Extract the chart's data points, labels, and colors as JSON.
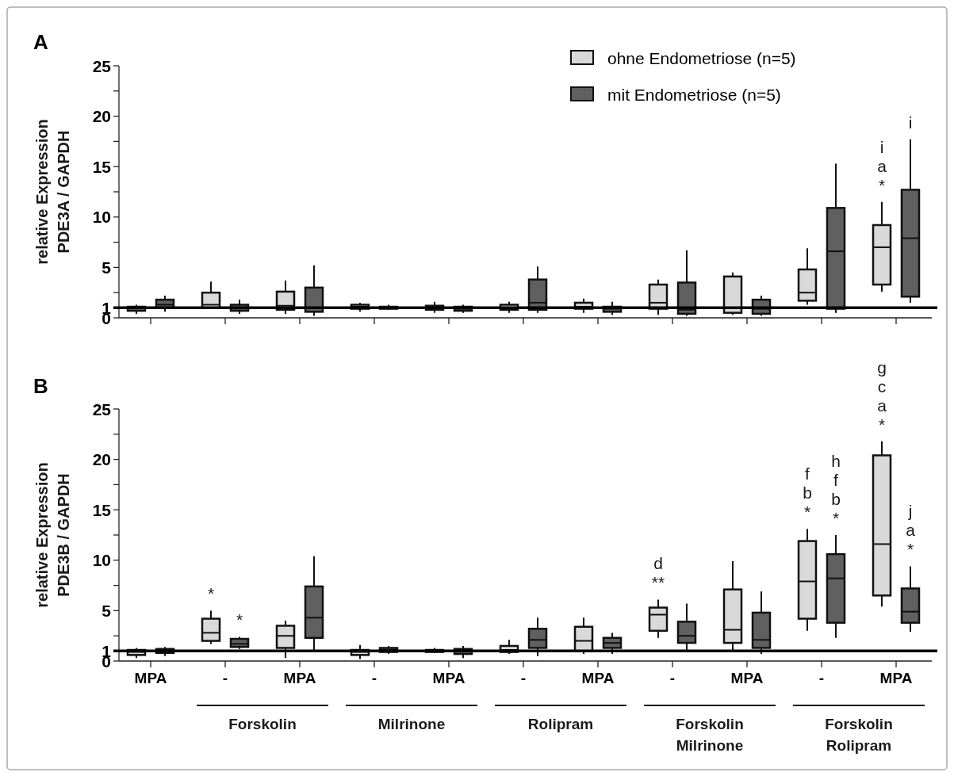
{
  "chart_data": [
    {
      "type": "box",
      "title": "A",
      "ylabel": "relative Expression\nPDE3A / GAPDH",
      "categories": [
        null,
        null,
        null,
        null,
        null,
        null,
        null,
        null,
        null,
        null,
        null
      ],
      "ylim": [
        0,
        25
      ],
      "yticks": [
        0,
        1,
        {
          "value": 2.5,
          "label": null
        },
        5,
        {
          "value": 7.5,
          "label": null
        },
        10,
        {
          "value": 12.5,
          "label": null
        },
        15,
        {
          "value": 17.5,
          "label": null
        },
        20,
        {
          "value": 22.5,
          "label": null
        },
        25
      ],
      "tick_labels": "y",
      "legend": "top right",
      "ref_lines": [
        {
          "axis": "y",
          "value": 1,
          "color": "#000000"
        }
      ],
      "series": [
        {
          "name": "ohne Endometriose (n=5)",
          "color": "#d9d9d9",
          "boxes": [
            {
              "low": 0.4,
              "q1": 0.7,
              "median": 0.9,
              "q3": 1.1,
              "high": 1.3
            },
            {
              "low": 0.9,
              "q1": 1.0,
              "median": 1.3,
              "q3": 2.5,
              "high": 3.6
            },
            {
              "low": 0.4,
              "q1": 0.8,
              "median": 1.2,
              "q3": 2.6,
              "high": 3.7
            },
            {
              "low": 0.6,
              "q1": 0.9,
              "median": 1.1,
              "q3": 1.3,
              "high": 1.5
            },
            {
              "low": 0.5,
              "q1": 0.8,
              "median": 1.0,
              "q3": 1.2,
              "high": 1.6
            },
            {
              "low": 0.5,
              "q1": 0.8,
              "median": 1.0,
              "q3": 1.3,
              "high": 1.6
            },
            {
              "low": 0.5,
              "q1": 0.9,
              "median": 1.1,
              "q3": 1.5,
              "high": 1.9
            },
            {
              "low": 0.3,
              "q1": 0.9,
              "median": 1.5,
              "q3": 3.3,
              "high": 3.8
            },
            {
              "low": 0.3,
              "q1": 0.5,
              "median": 1.0,
              "q3": 4.1,
              "high": 4.5
            },
            {
              "low": 1.3,
              "q1": 1.7,
              "median": 2.5,
              "q3": 4.8,
              "high": 6.9
            },
            {
              "low": 2.6,
              "q1": 3.3,
              "median": 7.0,
              "q3": 9.2,
              "high": 11.5
            }
          ],
          "value_labels": [
            null,
            null,
            null,
            null,
            null,
            null,
            null,
            null,
            null,
            null,
            "i\na\n*"
          ]
        },
        {
          "name": "mit Endometriose (n=5)",
          "color": "#606060",
          "boxes": [
            {
              "low": 0.6,
              "q1": 1.0,
              "median": 1.3,
              "q3": 1.8,
              "high": 2.2
            },
            {
              "low": 0.4,
              "q1": 0.7,
              "median": 1.0,
              "q3": 1.3,
              "high": 1.8
            },
            {
              "low": 0.2,
              "q1": 0.6,
              "median": 1.0,
              "q3": 3.0,
              "high": 5.2
            },
            {
              "low": 0.8,
              "q1": 0.9,
              "median": 1.0,
              "q3": 1.1,
              "high": 1.3
            },
            {
              "low": 0.5,
              "q1": 0.7,
              "median": 0.9,
              "q3": 1.1,
              "high": 1.3
            },
            {
              "low": 0.5,
              "q1": 0.8,
              "median": 1.5,
              "q3": 3.8,
              "high": 5.1
            },
            {
              "low": 0.3,
              "q1": 0.6,
              "median": 0.9,
              "q3": 1.1,
              "high": 1.6
            },
            {
              "low": 0.2,
              "q1": 0.4,
              "median": 0.8,
              "q3": 3.5,
              "high": 6.7
            },
            {
              "low": 0.2,
              "q1": 0.4,
              "median": 0.9,
              "q3": 1.8,
              "high": 2.2
            },
            {
              "low": 0.5,
              "q1": 0.9,
              "median": 6.6,
              "q3": 10.9,
              "high": 15.3
            },
            {
              "low": 1.5,
              "q1": 2.1,
              "median": 7.9,
              "q3": 12.7,
              "high": 17.7
            }
          ],
          "value_labels": [
            null,
            null,
            null,
            null,
            null,
            null,
            null,
            null,
            null,
            null,
            "i"
          ]
        }
      ]
    },
    {
      "type": "box",
      "title": "B",
      "ylabel": "relative Expression\nPDE3B / GAPDH",
      "categories": [
        "MPA",
        "-",
        "MPA",
        "-",
        "MPA",
        "-",
        "MPA",
        "-",
        "MPA",
        "-",
        "MPA"
      ],
      "ylim": [
        0,
        25
      ],
      "yticks": [
        0,
        1,
        {
          "value": 2.5,
          "label": null
        },
        5,
        {
          "value": 7.5,
          "label": null
        },
        10,
        {
          "value": 12.5,
          "label": null
        },
        15,
        {
          "value": 17.5,
          "label": null
        },
        20,
        {
          "value": 22.5,
          "label": null
        },
        25
      ],
      "ref_lines": [
        {
          "axis": "y",
          "value": 1,
          "color": "#000000"
        }
      ],
      "annotations": [
        "Forskolin",
        "Milrinone",
        "Rolipram",
        "Forskolin\nMilrinone",
        "Forskolin\nRolipram"
      ],
      "series": [
        {
          "color": "#d9d9d9",
          "boxes": [
            {
              "low": 0.3,
              "q1": 0.6,
              "median": 0.9,
              "q3": 1.1,
              "high": 1.3
            },
            {
              "low": 1.7,
              "q1": 2.0,
              "median": 2.8,
              "q3": 4.2,
              "high": 5.0
            },
            {
              "low": 0.3,
              "q1": 1.3,
              "median": 2.5,
              "q3": 3.5,
              "high": 4.0
            },
            {
              "low": 0.2,
              "q1": 0.6,
              "median": 0.9,
              "q3": 1.1,
              "high": 1.6
            },
            {
              "low": 0.8,
              "q1": 0.9,
              "median": 1.0,
              "q3": 1.1,
              "high": 1.3
            },
            {
              "low": 0.7,
              "q1": 0.9,
              "median": 1.1,
              "q3": 1.5,
              "high": 2.1
            },
            {
              "low": 0.7,
              "q1": 1.0,
              "median": 2.0,
              "q3": 3.4,
              "high": 4.3
            },
            {
              "low": 2.3,
              "q1": 3.0,
              "median": 4.6,
              "q3": 5.3,
              "high": 6.1
            },
            {
              "low": 1.0,
              "q1": 1.8,
              "median": 3.1,
              "q3": 7.1,
              "high": 9.9
            },
            {
              "low": 3.0,
              "q1": 4.2,
              "median": 7.9,
              "q3": 11.9,
              "high": 13.1
            },
            {
              "low": 5.4,
              "q1": 6.5,
              "median": 11.6,
              "q3": 20.4,
              "high": 21.8
            }
          ],
          "value_labels": [
            null,
            "*",
            null,
            null,
            null,
            null,
            null,
            "d\n**",
            null,
            "f\nb\n*",
            "g\nc\na\n*"
          ]
        },
        {
          "color": "#606060",
          "boxes": [
            {
              "low": 0.5,
              "q1": 0.8,
              "median": 1.0,
              "q3": 1.2,
              "high": 1.4
            },
            {
              "low": 1.2,
              "q1": 1.4,
              "median": 1.7,
              "q3": 2.2,
              "high": 2.4
            },
            {
              "low": 0.9,
              "q1": 2.3,
              "median": 4.3,
              "q3": 7.4,
              "high": 10.4
            },
            {
              "low": 0.7,
              "q1": 0.9,
              "median": 1.1,
              "q3": 1.3,
              "high": 1.5
            },
            {
              "low": 0.3,
              "q1": 0.7,
              "median": 1.0,
              "q3": 1.2,
              "high": 1.5
            },
            {
              "low": 0.5,
              "q1": 1.3,
              "median": 2.1,
              "q3": 3.2,
              "high": 4.3
            },
            {
              "low": 0.7,
              "q1": 1.3,
              "median": 1.8,
              "q3": 2.3,
              "high": 2.8
            },
            {
              "low": 1.1,
              "q1": 1.8,
              "median": 2.5,
              "q3": 3.9,
              "high": 5.7
            },
            {
              "low": 0.7,
              "q1": 1.3,
              "median": 2.1,
              "q3": 4.8,
              "high": 6.9
            },
            {
              "low": 2.3,
              "q1": 3.8,
              "median": 8.2,
              "q3": 10.6,
              "high": 12.5
            },
            {
              "low": 2.9,
              "q1": 3.8,
              "median": 4.9,
              "q3": 7.2,
              "high": 9.4
            }
          ],
          "value_labels": [
            null,
            "*",
            null,
            null,
            null,
            null,
            null,
            null,
            null,
            "h\nf\nb\n*",
            "j\na\n*"
          ]
        }
      ]
    }
  ]
}
